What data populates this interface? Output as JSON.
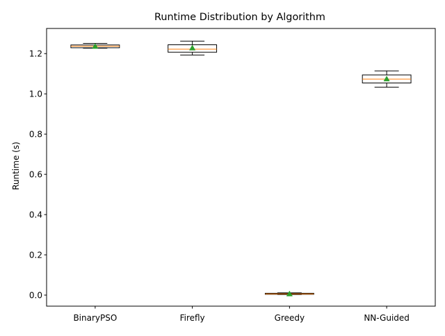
{
  "chart_data": {
    "type": "box",
    "title": "Runtime Distribution by Algorithm",
    "xlabel": "",
    "ylabel": "Runtime (s)",
    "categories": [
      "BinaryPSO",
      "Firefly",
      "Greedy",
      "NN-Guided"
    ],
    "ylim": [
      -0.055,
      1.325
    ],
    "yticks": [
      0.0,
      0.2,
      0.4,
      0.6,
      0.8,
      1.0,
      1.2
    ],
    "ytick_labels": [
      "0.0",
      "0.2",
      "0.4",
      "0.6",
      "0.8",
      "1.0",
      "1.2"
    ],
    "grid": false,
    "legend": "none",
    "boxes": [
      {
        "category": "BinaryPSO",
        "whisker_low": 1.227,
        "q1": 1.229,
        "median": 1.237,
        "q3": 1.243,
        "whisker_high": 1.251,
        "mean": 1.236
      },
      {
        "category": "Firefly",
        "whisker_low": 1.193,
        "q1": 1.207,
        "median": 1.222,
        "q3": 1.244,
        "whisker_high": 1.262,
        "mean": 1.228
      },
      {
        "category": "Greedy",
        "whisker_low": 0.003,
        "q1": 0.004,
        "median": 0.006,
        "q3": 0.009,
        "whisker_high": 0.011,
        "mean": 0.006
      },
      {
        "category": "NN-Guided",
        "whisker_low": 1.033,
        "q1": 1.054,
        "median": 1.073,
        "q3": 1.094,
        "whisker_high": 1.114,
        "mean": 1.074
      }
    ],
    "colors": {
      "box_edge": "#000000",
      "median": "#ff7f0e",
      "mean_marker": "#2ca02c",
      "axes": "#000000",
      "background": "#ffffff"
    }
  }
}
